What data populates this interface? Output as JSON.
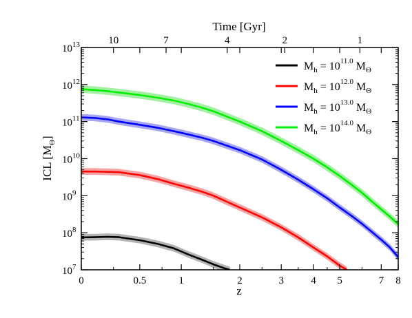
{
  "chart_data": {
    "type": "line",
    "xlabel": "z",
    "ylabel": "ICL [M",
    "ylabel_sub": "Θ",
    "ylabel_close": "]",
    "top_axis_label": "Time [Gyr]",
    "y_scale": "log",
    "x_scale": "log(1+z)",
    "xlim": [
      0,
      8
    ],
    "ylim": [
      10000000,
      10000000000000
    ],
    "grid": false,
    "legend_placement": "top-right",
    "x_ticks": [
      {
        "value": 0,
        "label": "0"
      },
      {
        "value": 0.5,
        "label": "0.5"
      },
      {
        "value": 1,
        "label": "1"
      },
      {
        "value": 2,
        "label": "2"
      },
      {
        "value": 3,
        "label": "3"
      },
      {
        "value": 4,
        "label": "4"
      },
      {
        "value": 5,
        "label": "5"
      },
      {
        "value": 7,
        "label": "7"
      },
      {
        "value": 8,
        "label": "8"
      }
    ],
    "x_minor_ticks": [
      0.25,
      0.75,
      1.5,
      2.5,
      3.5,
      4.5,
      6
    ],
    "top_ticks": [
      {
        "z": 1.75,
        "label": "4"
      },
      {
        "z": 0.25,
        "label": "10"
      },
      {
        "z": 0.8,
        "label": "7"
      },
      {
        "z": 3.1,
        "label": "2"
      },
      {
        "z": 5.9,
        "label": "1"
      }
    ],
    "y_ticks": [
      {
        "exp": 7,
        "base": "10",
        "sup": "7"
      },
      {
        "exp": 8,
        "base": "10",
        "sup": "8"
      },
      {
        "exp": 9,
        "base": "10",
        "sup": "9"
      },
      {
        "exp": 10,
        "base": "10",
        "sup": "10"
      },
      {
        "exp": 11,
        "base": "10",
        "sup": "11"
      },
      {
        "exp": 12,
        "base": "10",
        "sup": "12"
      },
      {
        "exp": 13,
        "base": "10",
        "sup": "13"
      }
    ],
    "series": [
      {
        "name_prefix": "M",
        "name_sub": "h",
        "name_mid": " = 10",
        "name_sup": "11.0",
        "name_unit": " M",
        "name_unit_sub": "Θ",
        "color": "#000000",
        "band_color": "#b3b3b3",
        "z": [
          0,
          0.1,
          0.2,
          0.3,
          0.5,
          0.7,
          0.9,
          1.1,
          1.3,
          1.5,
          1.7,
          1.8
        ],
        "y": [
          75000000,
          76000000,
          78000000,
          76000000,
          63000000,
          50000000,
          38000000,
          26000000,
          19000000,
          14000000,
          11000000,
          10000000
        ],
        "band_dex": 0.09
      },
      {
        "name_prefix": "M",
        "name_sub": "h",
        "name_mid": " = 10",
        "name_sup": "12.0",
        "name_unit": " M",
        "name_unit_sub": "Θ",
        "color": "#ff0000",
        "band_color": "#f6a3a3",
        "z": [
          0,
          0.1,
          0.2,
          0.3,
          0.5,
          0.7,
          0.9,
          1.1,
          1.3,
          1.5,
          2,
          2.5,
          3,
          3.5,
          4,
          4.5,
          5,
          5.3
        ],
        "y": [
          4500000000,
          4500000000,
          4400000000,
          4300000000,
          3600000000,
          2800000000,
          2100000000,
          1650000000,
          1300000000,
          1000000000,
          480000000,
          260000000,
          140000000,
          75000000,
          40000000,
          23000000,
          13000000,
          10000000
        ],
        "band_dex": 0.09
      },
      {
        "name_prefix": "M",
        "name_sub": "h",
        "name_mid": " = 10",
        "name_sup": "13.0",
        "name_unit": " M",
        "name_unit_sub": "Θ",
        "color": "#0000ff",
        "band_color": "#a6a6f5",
        "z": [
          0,
          0.1,
          0.2,
          0.3,
          0.5,
          0.7,
          0.9,
          1.1,
          1.3,
          1.5,
          2,
          2.5,
          3,
          3.5,
          4,
          4.5,
          5,
          5.5,
          6,
          6.5,
          7,
          7.5,
          8
        ],
        "y": [
          130000000000,
          125000000000,
          115000000000,
          100000000000,
          82000000000,
          68000000000,
          55000000000,
          45000000000,
          37000000000,
          30000000000,
          17000000000,
          9500000000,
          5000000000,
          2700000000,
          1500000000,
          850000000,
          480000000,
          290000000,
          175000000,
          105000000,
          65000000,
          40000000,
          22000000
        ],
        "band_dex": 0.09
      },
      {
        "name_prefix": "M",
        "name_sub": "h",
        "name_mid": " = 10",
        "name_sup": "14.0",
        "name_unit": " M",
        "name_unit_sub": "Θ",
        "color": "#00ee00",
        "band_color": "#a3f0a3",
        "z": [
          0,
          0.1,
          0.2,
          0.3,
          0.5,
          0.7,
          0.9,
          1.1,
          1.3,
          1.5,
          2,
          2.5,
          3,
          3.5,
          4,
          4.5,
          5,
          5.5,
          6,
          6.5,
          7,
          7.5,
          8
        ],
        "y": [
          750000000000,
          710000000000,
          660000000000,
          610000000000,
          520000000000,
          440000000000,
          370000000000,
          300000000000,
          240000000000,
          190000000000,
          100000000000,
          55000000000,
          30000000000,
          17000000000,
          10000000000,
          5800000000,
          3400000000,
          2000000000,
          1200000000,
          700000000,
          430000000,
          270000000,
          170000000
        ],
        "band_dex": 0.1
      }
    ]
  }
}
